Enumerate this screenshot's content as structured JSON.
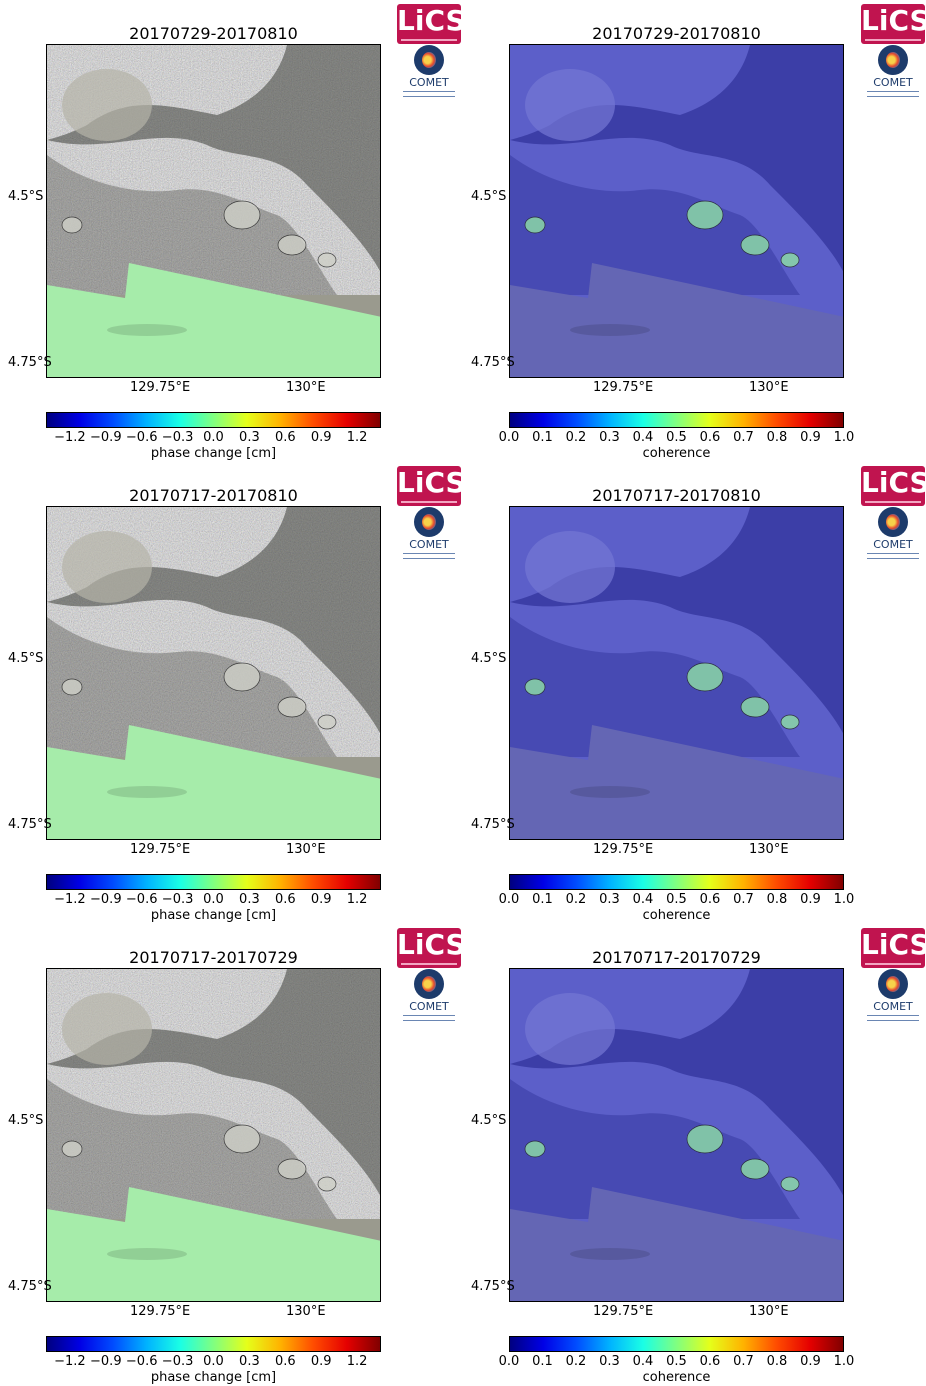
{
  "brand": {
    "lics_text": "LiCS",
    "comet_text": "COMET"
  },
  "panels": [
    {
      "title": "20170729-20170810",
      "kind": "phase"
    },
    {
      "title": "20170729-20170810",
      "kind": "coherence"
    },
    {
      "title": "20170717-20170810",
      "kind": "phase"
    },
    {
      "title": "20170717-20170810",
      "kind": "coherence"
    },
    {
      "title": "20170717-20170729",
      "kind": "phase"
    },
    {
      "title": "20170717-20170729",
      "kind": "coherence"
    }
  ],
  "chart_data": [
    {
      "type": "heatmap",
      "title": "20170729-20170810",
      "subtitle": "",
      "xlabel": "",
      "ylabel": "",
      "xtick_labels": [
        "129.75°E",
        "130°E"
      ],
      "ytick_labels": [
        "4.5°S",
        "4.75°S"
      ],
      "colorbar": {
        "label": "phase change [cm]",
        "ticks": [
          "−1.2",
          "−0.9",
          "−0.6",
          "−0.3",
          "0.0",
          "0.3",
          "0.6",
          "0.9",
          "1.2"
        ],
        "range": [
          -1.4,
          1.4
        ],
        "colormap": "jet"
      }
    },
    {
      "type": "heatmap",
      "title": "20170729-20170810",
      "xtick_labels": [
        "129.75°E",
        "130°E"
      ],
      "ytick_labels": [
        "4.5°S",
        "4.75°S"
      ],
      "colorbar": {
        "label": "coherence",
        "ticks": [
          "0.0",
          "0.1",
          "0.2",
          "0.3",
          "0.4",
          "0.5",
          "0.6",
          "0.7",
          "0.8",
          "0.9",
          "1.0"
        ],
        "range": [
          0.0,
          1.0
        ],
        "colormap": "jet"
      }
    },
    {
      "type": "heatmap",
      "title": "20170717-20170810",
      "xtick_labels": [
        "129.75°E",
        "130°E"
      ],
      "ytick_labels": [
        "4.5°S",
        "4.75°S"
      ],
      "colorbar": {
        "label": "phase change [cm]",
        "ticks": [
          "−1.2",
          "−0.9",
          "−0.6",
          "−0.3",
          "0.0",
          "0.3",
          "0.6",
          "0.9",
          "1.2"
        ],
        "range": [
          -1.4,
          1.4
        ],
        "colormap": "jet"
      }
    },
    {
      "type": "heatmap",
      "title": "20170717-20170810",
      "xtick_labels": [
        "129.75°E",
        "130°E"
      ],
      "ytick_labels": [
        "4.5°S",
        "4.75°S"
      ],
      "colorbar": {
        "label": "coherence",
        "ticks": [
          "0.0",
          "0.1",
          "0.2",
          "0.3",
          "0.4",
          "0.5",
          "0.6",
          "0.7",
          "0.8",
          "0.9",
          "1.0"
        ],
        "range": [
          0.0,
          1.0
        ],
        "colormap": "jet"
      }
    },
    {
      "type": "heatmap",
      "title": "20170717-20170729",
      "xtick_labels": [
        "129.75°E",
        "130°E"
      ],
      "ytick_labels": [
        "4.5°S",
        "4.75°S"
      ],
      "colorbar": {
        "label": "phase change [cm]",
        "ticks": [
          "−1.2",
          "−0.9",
          "−0.6",
          "−0.3",
          "0.0",
          "0.3",
          "0.6",
          "0.9",
          "1.2"
        ],
        "range": [
          -1.4,
          1.4
        ],
        "colormap": "jet"
      }
    },
    {
      "type": "heatmap",
      "title": "20170717-20170729",
      "xtick_labels": [
        "129.75°E",
        "130°E"
      ],
      "ytick_labels": [
        "4.5°S",
        "4.75°S"
      ],
      "colorbar": {
        "label": "coherence",
        "ticks": [
          "0.0",
          "0.1",
          "0.2",
          "0.3",
          "0.4",
          "0.5",
          "0.6",
          "0.7",
          "0.8",
          "0.9",
          "1.0"
        ],
        "range": [
          0.0,
          1.0
        ],
        "colormap": "jet"
      }
    }
  ],
  "colors": {
    "lics_bg": "#c0144f",
    "comet_blue": "#1d3b6b",
    "sea_green": "#a6ecaa",
    "coherence_blue": "#5558c4",
    "coherence_dark": "#2e2f9a"
  }
}
